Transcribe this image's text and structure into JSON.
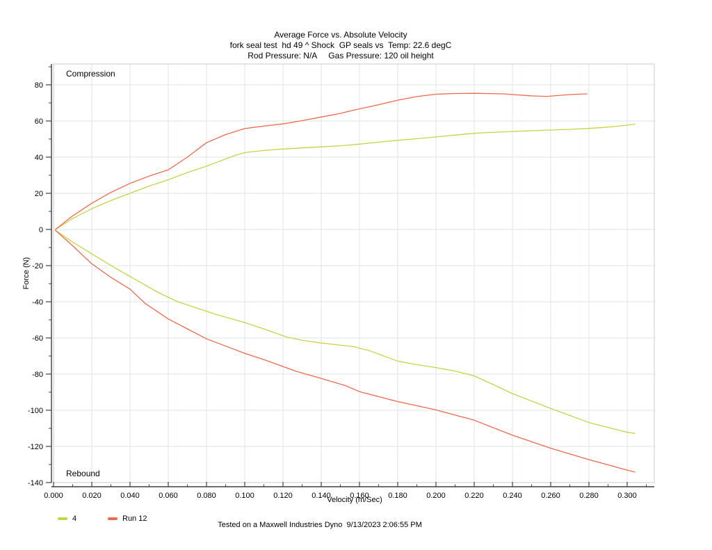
{
  "title": {
    "line1": "Average Force vs. Absolute Velocity",
    "line2": "fork seal test  hd 49 ^ Shock  GP seals vs  Temp: 22.6 degC",
    "line3": "Rod Pressure: N/A     Gas Pressure: 120 oil height"
  },
  "region_labels": {
    "top": "Compression",
    "bottom": "Rebound"
  },
  "axes": {
    "x_label": "Velocity (m/Sec)",
    "y_label": "Force (N)"
  },
  "legend": [
    {
      "label": "4",
      "color": "#c7d341"
    },
    {
      "label": "Run 12",
      "color": "#f3674b"
    }
  ],
  "footer": "Tested on a Maxwell Industries Dyno  9/13/2023 2:06:55 PM",
  "colors": {
    "grid": "#d8e7e3",
    "plot_border": "#c8cccb",
    "axis": "#3f3f3f",
    "series_4": "#c7d341",
    "series_run12": "#f3674b"
  },
  "chart_data": {
    "type": "line",
    "title": "Average Force vs. Absolute Velocity",
    "subtitle1": "fork seal test  hd 49 ^ Shock  GP seals vs  Temp: 22.6 degC",
    "subtitle2": "Rod Pressure: N/A     Gas Pressure: 120 oil height",
    "xlabel": "Velocity (m/Sec)",
    "ylabel": "Force (N)",
    "xlim": [
      0.0,
      0.3142
    ],
    "ylim": [
      -140,
      91.5
    ],
    "grid": true,
    "legend_position": "bottom-left",
    "annotations": [
      "Compression",
      "Rebound"
    ],
    "x_ticks": [
      0.0,
      0.02,
      0.04,
      0.06,
      0.08,
      0.1,
      0.12,
      0.14,
      0.16,
      0.18,
      0.2,
      0.22,
      0.24,
      0.26,
      0.28,
      0.3
    ],
    "x_tick_labels": [
      "0.000",
      "0.020",
      "0.040",
      "0.060",
      "0.080",
      "0.100",
      "0.120",
      "0.140",
      "0.160",
      "0.180",
      "0.200",
      "0.220",
      "0.240",
      "0.260",
      "0.280",
      "0.300"
    ],
    "y_ticks": [
      80,
      60,
      40,
      20,
      0,
      -20,
      -40,
      -60,
      -80,
      -100,
      -120,
      -140
    ],
    "y_tick_labels": [
      "80",
      "60",
      "40",
      "20",
      "0",
      "-20",
      "-40",
      "-60",
      "-80",
      "-100",
      "-120",
      "-140"
    ],
    "series": [
      {
        "name": "4",
        "color": "#c7d341",
        "compression": [
          [
            0.001,
            0
          ],
          [
            0.01,
            6
          ],
          [
            0.02,
            11.5
          ],
          [
            0.03,
            16
          ],
          [
            0.04,
            20
          ],
          [
            0.05,
            24
          ],
          [
            0.06,
            27.5
          ],
          [
            0.07,
            31.5
          ],
          [
            0.08,
            35
          ],
          [
            0.085,
            37
          ],
          [
            0.09,
            39
          ],
          [
            0.095,
            41
          ],
          [
            0.1,
            42.5
          ],
          [
            0.11,
            43.7
          ],
          [
            0.12,
            44.5
          ],
          [
            0.13,
            45.1
          ],
          [
            0.14,
            45.7
          ],
          [
            0.15,
            46.3
          ],
          [
            0.16,
            47.2
          ],
          [
            0.17,
            48.3
          ],
          [
            0.18,
            49.3
          ],
          [
            0.19,
            50.2
          ],
          [
            0.2,
            51.2
          ],
          [
            0.21,
            52.2
          ],
          [
            0.22,
            53.2
          ],
          [
            0.229,
            53.7
          ],
          [
            0.24,
            54.2
          ],
          [
            0.25,
            54.6
          ],
          [
            0.26,
            55
          ],
          [
            0.27,
            55.4
          ],
          [
            0.28,
            55.9
          ],
          [
            0.29,
            56.6
          ],
          [
            0.3,
            57.7
          ],
          [
            0.304,
            58.3
          ]
        ],
        "rebound": [
          [
            0.001,
            -0.5
          ],
          [
            0.01,
            -7
          ],
          [
            0.02,
            -13.5
          ],
          [
            0.027,
            -18
          ],
          [
            0.035,
            -23
          ],
          [
            0.045,
            -29
          ],
          [
            0.055,
            -35
          ],
          [
            0.065,
            -40
          ],
          [
            0.075,
            -43.5
          ],
          [
            0.085,
            -47
          ],
          [
            0.1,
            -51.5
          ],
          [
            0.11,
            -55
          ],
          [
            0.122,
            -59.5
          ],
          [
            0.13,
            -61.3
          ],
          [
            0.14,
            -62.8
          ],
          [
            0.15,
            -64
          ],
          [
            0.157,
            -64.8
          ],
          [
            0.165,
            -67
          ],
          [
            0.18,
            -72.8
          ],
          [
            0.19,
            -74.8
          ],
          [
            0.2,
            -76.4
          ],
          [
            0.21,
            -78.3
          ],
          [
            0.22,
            -81
          ],
          [
            0.23,
            -85.8
          ],
          [
            0.24,
            -90.8
          ],
          [
            0.26,
            -99
          ],
          [
            0.28,
            -106.8
          ],
          [
            0.3,
            -112.2
          ],
          [
            0.304,
            -112.8
          ]
        ]
      },
      {
        "name": "Run 12",
        "color": "#f3674b",
        "compression": [
          [
            0.001,
            0
          ],
          [
            0.01,
            7.5
          ],
          [
            0.02,
            14.5
          ],
          [
            0.03,
            20.5
          ],
          [
            0.04,
            25.5
          ],
          [
            0.05,
            29.5
          ],
          [
            0.06,
            33
          ],
          [
            0.07,
            40
          ],
          [
            0.08,
            48
          ],
          [
            0.09,
            52.5
          ],
          [
            0.1,
            55.8
          ],
          [
            0.11,
            57.2
          ],
          [
            0.12,
            58.4
          ],
          [
            0.13,
            60.2
          ],
          [
            0.14,
            62.2
          ],
          [
            0.15,
            64.2
          ],
          [
            0.157,
            66
          ],
          [
            0.17,
            69
          ],
          [
            0.18,
            71.5
          ],
          [
            0.19,
            73.5
          ],
          [
            0.2,
            74.8
          ],
          [
            0.21,
            75.2
          ],
          [
            0.22,
            75.3
          ],
          [
            0.235,
            75
          ],
          [
            0.25,
            73.9
          ],
          [
            0.258,
            73.6
          ],
          [
            0.27,
            74.6
          ],
          [
            0.279,
            75
          ]
        ],
        "rebound": [
          [
            0.001,
            -0.5
          ],
          [
            0.01,
            -9
          ],
          [
            0.02,
            -19
          ],
          [
            0.03,
            -26.5
          ],
          [
            0.04,
            -33
          ],
          [
            0.048,
            -41
          ],
          [
            0.06,
            -49.5
          ],
          [
            0.07,
            -55
          ],
          [
            0.08,
            -60.5
          ],
          [
            0.09,
            -64.5
          ],
          [
            0.1,
            -68.5
          ],
          [
            0.11,
            -72
          ],
          [
            0.12,
            -75.8
          ],
          [
            0.127,
            -78.5
          ],
          [
            0.14,
            -82.4
          ],
          [
            0.153,
            -86.5
          ],
          [
            0.16,
            -89.7
          ],
          [
            0.18,
            -95.2
          ],
          [
            0.2,
            -99.8
          ],
          [
            0.22,
            -105.5
          ],
          [
            0.24,
            -113.8
          ],
          [
            0.26,
            -121
          ],
          [
            0.28,
            -127.3
          ],
          [
            0.3,
            -133.1
          ],
          [
            0.304,
            -134.2
          ]
        ]
      }
    ]
  }
}
